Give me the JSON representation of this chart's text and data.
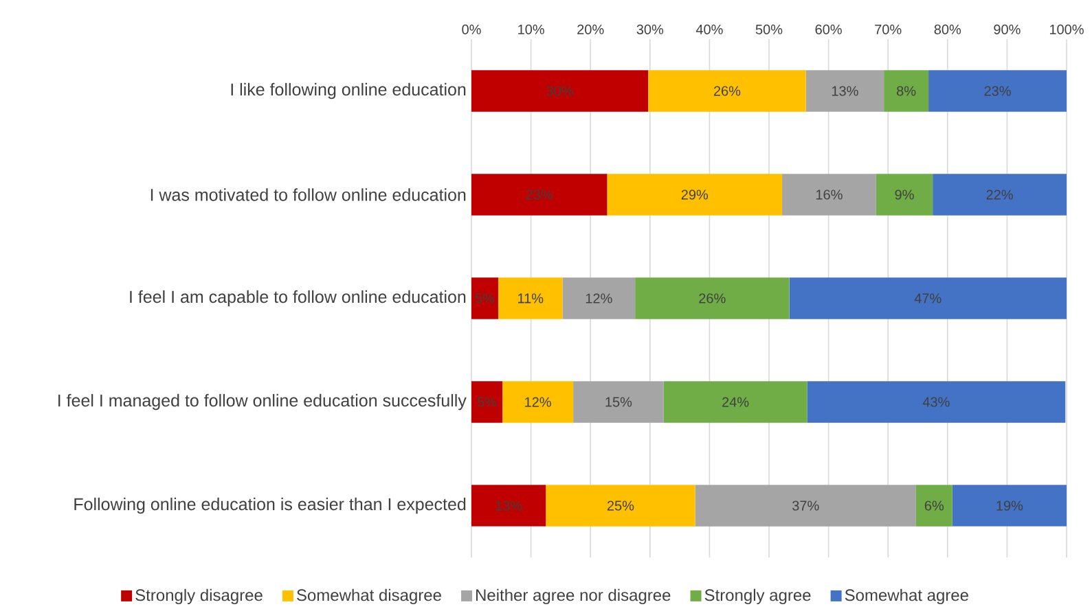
{
  "chart_data": {
    "type": "bar",
    "orientation": "horizontal",
    "stacked": true,
    "categories": [
      "I like  following online education",
      "I was motivated  to follow online education",
      "I feel I am capable to follow online education",
      "I feel I managed to follow online education succesfully",
      "Following online education is easier than I expected"
    ],
    "series": [
      {
        "name": "Strongly disagree",
        "color": "#c00000",
        "values": [
          29.7,
          22.8,
          4.5,
          5.2,
          12.5
        ],
        "value_labels": [
          "30%",
          "23%",
          "5%",
          "5%",
          "13%"
        ]
      },
      {
        "name": "Somewhat disagree",
        "color": "#ffc000",
        "values": [
          26.5,
          29.4,
          10.8,
          11.9,
          25.1
        ],
        "value_labels": [
          "26%",
          "29%",
          "11%",
          "12%",
          "25%"
        ]
      },
      {
        "name": "Neither agree nor disagree",
        "color": "#a5a5a5",
        "values": [
          13.1,
          15.8,
          12.2,
          15.2,
          37.1
        ],
        "value_labels": [
          "13%",
          "16%",
          "12%",
          "15%",
          "37%"
        ]
      },
      {
        "name": "Strongly agree",
        "color": "#70ad47",
        "values": [
          7.5,
          9.5,
          25.9,
          24.1,
          6.1
        ],
        "value_labels": [
          "8%",
          "9%",
          "26%",
          "24%",
          "6%"
        ]
      },
      {
        "name": "Somewhat agree",
        "color": "#4472c4",
        "values": [
          23.2,
          22.5,
          46.6,
          43.4,
          19.2
        ],
        "value_labels": [
          "23%",
          "22%",
          "47%",
          "43%",
          "19%"
        ]
      }
    ],
    "xlim": [
      0,
      100
    ],
    "xticks": [
      {
        "value": 0,
        "label": "0%"
      },
      {
        "value": 10,
        "label": "10%"
      },
      {
        "value": 20,
        "label": "20%"
      },
      {
        "value": 30,
        "label": "30%"
      },
      {
        "value": 40,
        "label": "40%"
      },
      {
        "value": 50,
        "label": "50%"
      },
      {
        "value": 60,
        "label": "60%"
      },
      {
        "value": 70,
        "label": "70%"
      },
      {
        "value": 80,
        "label": "80%"
      },
      {
        "value": 90,
        "label": "90%"
      },
      {
        "value": 100,
        "label": "100%"
      }
    ],
    "grid": "x",
    "legend": "bottom"
  }
}
